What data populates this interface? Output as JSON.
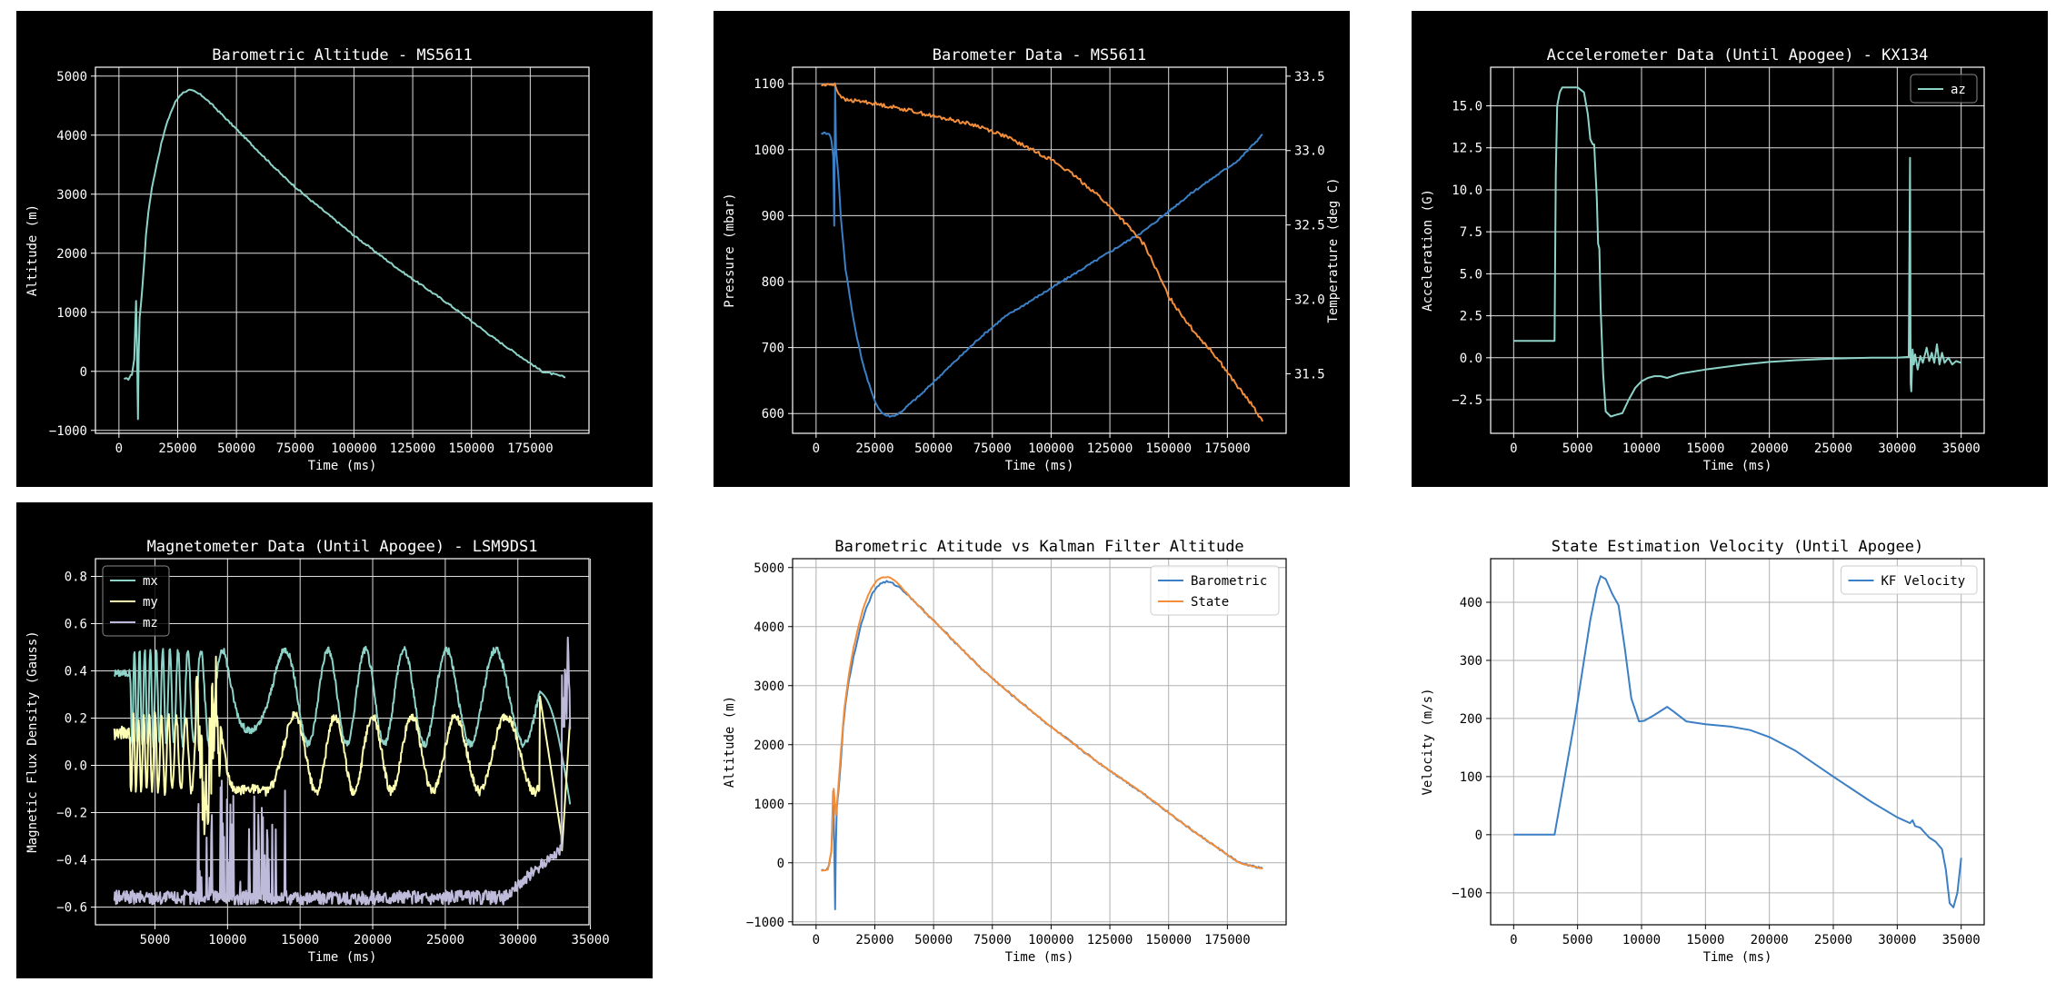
{
  "chart_data": [
    {
      "id": "p1",
      "type": "line",
      "theme": "dark",
      "title": "Barometric Altitude - MS5611",
      "xlabel": "Time (ms)",
      "ylabel": "Altitude (m)",
      "xlim": [
        -10000,
        200000
      ],
      "ylim": [
        -1050,
        5150
      ],
      "xticks": [
        0,
        25000,
        50000,
        75000,
        100000,
        125000,
        150000,
        175000
      ],
      "yticks": [
        -1000,
        0,
        1000,
        2000,
        3000,
        4000,
        5000
      ],
      "grid": true,
      "series": [
        {
          "color": "#8dd3c7",
          "noise": 15,
          "x": [
            2200,
            4000,
            5500,
            6500,
            7300,
            7700,
            8100,
            8400,
            8800,
            9500,
            10500,
            11500,
            12500,
            14000,
            16000,
            18000,
            20000,
            22000,
            24000,
            26000,
            28000,
            30000,
            32000,
            34000,
            36000,
            40000,
            45000,
            50000,
            60000,
            70000,
            80000,
            100000,
            120000,
            140000,
            160000,
            180000,
            190000
          ],
          "y": [
            -130,
            -130,
            -50,
            200,
            1200,
            300,
            -800,
            300,
            900,
            1200,
            1700,
            2300,
            2700,
            3100,
            3500,
            3850,
            4150,
            4380,
            4560,
            4680,
            4740,
            4760,
            4740,
            4700,
            4650,
            4500,
            4300,
            4100,
            3700,
            3300,
            2950,
            2300,
            1700,
            1150,
            550,
            0,
            -100
          ]
        }
      ]
    },
    {
      "id": "p2",
      "type": "line",
      "theme": "dark",
      "title": "Barometer Data - MS5611",
      "xlabel": "Time (ms)",
      "ylabel": "Pressure (mbar)",
      "ylabel_right": "Temperature (deg C)",
      "xlim": [
        -10000,
        200000
      ],
      "ylim": [
        570,
        1125
      ],
      "ylim_right": [
        31.1,
        33.56
      ],
      "xticks": [
        0,
        25000,
        50000,
        75000,
        100000,
        125000,
        150000,
        175000
      ],
      "yticks": [
        600,
        700,
        800,
        900,
        1000,
        1100
      ],
      "yticks_right": [
        31.5,
        32.0,
        32.5,
        33.0,
        33.5
      ],
      "grid": true,
      "series": [
        {
          "color": "#3c7fc5",
          "axis": "left",
          "noise": 1.5,
          "x": [
            2200,
            5500,
            6500,
            7300,
            7700,
            8100,
            8500,
            9500,
            10500,
            11500,
            12500,
            14000,
            16000,
            18000,
            20000,
            22000,
            24000,
            26000,
            28000,
            30000,
            32000,
            34000,
            36000,
            40000,
            45000,
            50000,
            60000,
            70000,
            80000,
            100000,
            120000,
            140000,
            160000,
            180000,
            190000
          ],
          "y": [
            1025,
            1025,
            1015,
            990,
            885,
            1100,
            1000,
            960,
            900,
            860,
            820,
            785,
            740,
            705,
            675,
            650,
            628,
            612,
            601,
            597,
            596,
            598,
            602,
            615,
            630,
            648,
            682,
            716,
            746,
            790,
            834,
            878,
            935,
            985,
            1023
          ]
        },
        {
          "color": "#f28e3b",
          "axis": "right",
          "noise": 0.012,
          "x": [
            2200,
            5000,
            8000,
            9000,
            12000,
            20000,
            30000,
            40000,
            50000,
            60000,
            70000,
            80000,
            90000,
            100000,
            110000,
            120000,
            130000,
            140000,
            150000,
            160000,
            170000,
            180000,
            185000,
            190000
          ],
          "y": [
            33.44,
            33.44,
            33.45,
            33.4,
            33.34,
            33.33,
            33.3,
            33.27,
            33.23,
            33.2,
            33.16,
            33.1,
            33.02,
            32.94,
            32.83,
            32.7,
            32.54,
            32.36,
            32.02,
            31.8,
            31.62,
            31.4,
            31.3,
            31.18
          ]
        }
      ]
    },
    {
      "id": "p3",
      "type": "line",
      "theme": "dark",
      "title": "Accelerometer Data (Until Apogee) - KX134",
      "xlabel": "Time (ms)",
      "ylabel": "Acceleration (G)",
      "xlim": [
        -1800,
        36800
      ],
      "ylim": [
        -4.5,
        17.3
      ],
      "xticks": [
        0,
        5000,
        10000,
        15000,
        20000,
        25000,
        30000,
        35000
      ],
      "yticks": [
        -2.5,
        0.0,
        2.5,
        5.0,
        7.5,
        10.0,
        12.5,
        15.0
      ],
      "ytick_labels": [
        "−2.5",
        "0.0",
        "2.5",
        "5.0",
        "7.5",
        "10.0",
        "12.5",
        "15.0"
      ],
      "grid": true,
      "legend": "top-right",
      "series": [
        {
          "name": "az",
          "color": "#8dd3c7",
          "x": [
            0,
            3200,
            3300,
            3400,
            3600,
            3800,
            4200,
            5000,
            5500,
            5800,
            6000,
            6200,
            6300,
            6500,
            6600,
            6700,
            6800,
            7000,
            7200,
            7600,
            8000,
            8500,
            9000,
            9500,
            10000,
            10500,
            11000,
            11500,
            12000,
            13000,
            15000,
            18000,
            20000,
            22000,
            25000,
            28000,
            30000,
            30900,
            31000,
            31050,
            31100,
            31200,
            31300,
            31400,
            31600,
            31800,
            32000,
            32300,
            32500,
            32700,
            32900,
            33100,
            33300,
            33500,
            33700,
            34000,
            34300,
            34600,
            35000
          ],
          "y": [
            1.0,
            1.0,
            11.0,
            15.0,
            15.8,
            16.1,
            16.1,
            16.1,
            15.8,
            14.5,
            13.0,
            12.7,
            12.7,
            9.5,
            6.8,
            6.5,
            3.0,
            -1.0,
            -3.2,
            -3.5,
            -3.4,
            -3.3,
            -2.5,
            -1.8,
            -1.4,
            -1.2,
            -1.1,
            -1.1,
            -1.2,
            -0.95,
            -0.7,
            -0.4,
            -0.25,
            -0.15,
            -0.05,
            0.0,
            0.0,
            0.05,
            11.9,
            -1.5,
            -2.0,
            0.5,
            -0.4,
            0.2,
            -0.7,
            0.1,
            -0.3,
            0.6,
            -0.2,
            0.3,
            -0.3,
            0.8,
            -0.4,
            0.3,
            -0.3,
            0.0,
            -0.4,
            -0.2,
            -0.3
          ]
        }
      ]
    },
    {
      "id": "p4",
      "type": "line",
      "theme": "dark",
      "title": "Magnetometer Data (Until Apogee) - LSM9DS1",
      "xlabel": "Time (ms)",
      "ylabel": "Magnetic Flux Density (Gauss)",
      "xlim": [
        900,
        34900
      ],
      "ylim": [
        -0.675,
        0.875
      ],
      "xticks": [
        5000,
        10000,
        15000,
        20000,
        25000,
        30000,
        35000
      ],
      "yticks": [
        -0.6,
        -0.4,
        -0.2,
        0.0,
        0.2,
        0.4,
        0.6,
        0.8
      ],
      "ytick_labels": [
        "−0.6",
        "−0.4",
        "−0.2",
        "0.0",
        "0.2",
        "0.4",
        "0.6",
        "0.8"
      ],
      "grid": true,
      "legend": "top-left",
      "series": [
        {
          "name": "mx",
          "color": "#8dd3c7"
        },
        {
          "name": "my",
          "color": "#ffffb3"
        },
        {
          "name": "mz",
          "color": "#bebada"
        }
      ]
    },
    {
      "id": "p5",
      "type": "line",
      "theme": "light",
      "title": "Barometric Atitude vs Kalman Filter Altitude",
      "xlabel": "Time (ms)",
      "ylabel": "Altitude (m)",
      "xlim": [
        -10000,
        200000
      ],
      "ylim": [
        -1050,
        5150
      ],
      "xticks": [
        0,
        25000,
        50000,
        75000,
        100000,
        125000,
        150000,
        175000
      ],
      "yticks": [
        -1000,
        0,
        1000,
        2000,
        3000,
        4000,
        5000
      ],
      "grid": true,
      "legend": "top-right",
      "series": [
        {
          "name": "Barometric",
          "color": "#3c7fc5",
          "noise": 15,
          "x": [
            2200,
            4000,
            5500,
            6500,
            7300,
            7700,
            8100,
            8400,
            8800,
            9500,
            10500,
            11500,
            12500,
            14000,
            16000,
            18000,
            20000,
            22000,
            24000,
            26000,
            28000,
            30000,
            32000,
            34000,
            36000,
            40000,
            45000,
            50000,
            60000,
            70000,
            80000,
            100000,
            120000,
            140000,
            160000,
            180000,
            190000
          ],
          "y": [
            -130,
            -130,
            -50,
            200,
            1200,
            300,
            -800,
            300,
            900,
            1200,
            1700,
            2300,
            2700,
            3100,
            3500,
            3850,
            4150,
            4380,
            4560,
            4680,
            4740,
            4760,
            4740,
            4700,
            4650,
            4500,
            4300,
            4100,
            3700,
            3300,
            2950,
            2300,
            1700,
            1150,
            550,
            0,
            -100
          ]
        },
        {
          "name": "State",
          "color": "#f28e3b",
          "noise": 6,
          "x": [
            2200,
            5000,
            6500,
            7500,
            8500,
            9500,
            10500,
            12000,
            14000,
            16000,
            18000,
            20000,
            22000,
            24000,
            26000,
            28000,
            30000,
            32000,
            34000,
            36000,
            40000,
            45000,
            50000,
            60000,
            70000,
            80000,
            100000,
            120000,
            140000,
            160000,
            180000,
            190000
          ],
          "y": [
            -130,
            -120,
            200,
            1250,
            800,
            1300,
            1850,
            2600,
            3200,
            3650,
            4000,
            4300,
            4520,
            4680,
            4780,
            4830,
            4840,
            4820,
            4760,
            4680,
            4500,
            4300,
            4100,
            3700,
            3300,
            2950,
            2300,
            1700,
            1150,
            550,
            0,
            -100
          ]
        }
      ]
    },
    {
      "id": "p6",
      "type": "line",
      "theme": "light",
      "title": "State Estimation Velocity (Until Apogee)",
      "xlabel": "Time (ms)",
      "ylabel": "Velocity (m/s)",
      "xlim": [
        -1800,
        36800
      ],
      "ylim": [
        -155,
        475
      ],
      "xticks": [
        0,
        5000,
        10000,
        15000,
        20000,
        25000,
        30000,
        35000
      ],
      "yticks": [
        -100,
        0,
        100,
        200,
        300,
        400
      ],
      "ytick_labels": [
        "−100",
        "0",
        "100",
        "200",
        "300",
        "400"
      ],
      "grid": true,
      "legend": "top-right",
      "series": [
        {
          "name": "KF Velocity",
          "color": "#3c7fc5",
          "x": [
            0,
            3200,
            4000,
            4800,
            5500,
            6000,
            6500,
            6800,
            7200,
            7700,
            8200,
            8700,
            9200,
            9800,
            10200,
            11000,
            12000,
            12500,
            13500,
            15000,
            17000,
            18500,
            20000,
            22000,
            25000,
            28000,
            30000,
            31000,
            31200,
            31400,
            31800,
            32500,
            33000,
            33500,
            33800,
            34100,
            34400,
            34700,
            35000
          ],
          "y": [
            0,
            0,
            100,
            200,
            300,
            370,
            425,
            445,
            440,
            415,
            395,
            320,
            235,
            195,
            196,
            206,
            220,
            212,
            195,
            190,
            186,
            180,
            168,
            145,
            100,
            56,
            30,
            20,
            25,
            15,
            12,
            -5,
            -12,
            -25,
            -60,
            -118,
            -125,
            -100,
            -40
          ]
        }
      ]
    }
  ]
}
